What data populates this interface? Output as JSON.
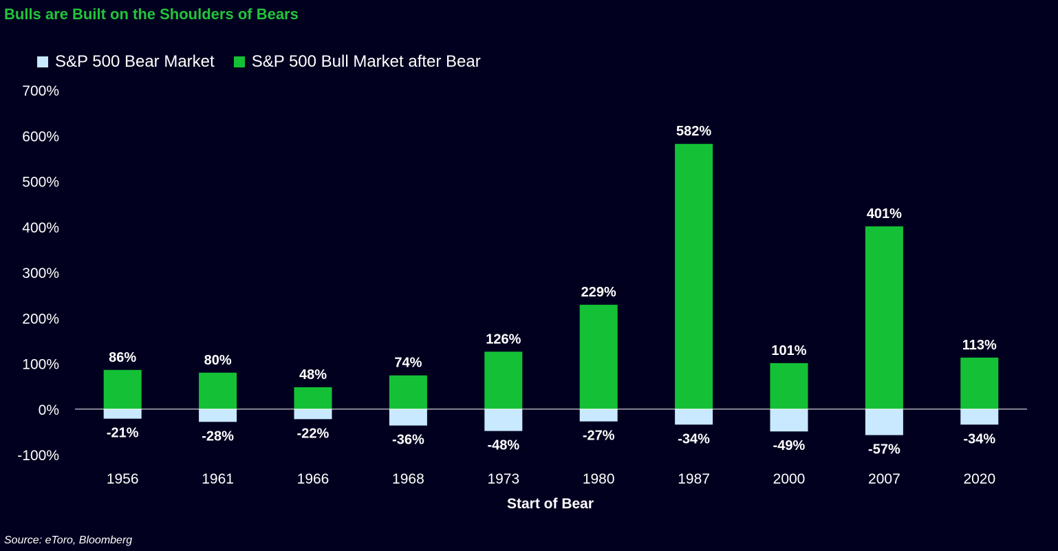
{
  "title": "Bulls are Built on the Shoulders of Bears",
  "source": "Source: eToro, Bloomberg",
  "colors": {
    "background": "#02001f",
    "bear": "#c8e9ff",
    "bull": "#14c136",
    "title": "#22c53a",
    "text": "#ffffff"
  },
  "legend": {
    "position": "top-left",
    "items": [
      {
        "label": "S&P 500 Bear Market",
        "color": "#c8e9ff"
      },
      {
        "label": "S&P 500 Bull Market after Bear",
        "color": "#14c136"
      }
    ]
  },
  "chart_data": {
    "type": "bar",
    "title": "Bulls are Built on the Shoulders of Bears",
    "xlabel": "Start of Bear",
    "ylabel": "",
    "ylim": [
      -100,
      700
    ],
    "yticks": [
      -100,
      0,
      100,
      200,
      300,
      400,
      500,
      600,
      700
    ],
    "ytick_labels": [
      "-100%",
      "0%",
      "100%",
      "200%",
      "300%",
      "400%",
      "500%",
      "600%",
      "700%"
    ],
    "grid": false,
    "categories": [
      "1956",
      "1961",
      "1966",
      "1968",
      "1973",
      "1980",
      "1987",
      "2000",
      "2007",
      "2020"
    ],
    "series": [
      {
        "name": "S&P 500 Bear Market",
        "values": [
          -21,
          -28,
          -22,
          -36,
          -48,
          -27,
          -34,
          -49,
          -57,
          -34
        ],
        "labels": [
          "-21%",
          "-28%",
          "-22%",
          "-36%",
          "-48%",
          "-27%",
          "-34%",
          "-49%",
          "-57%",
          "-34%"
        ]
      },
      {
        "name": "S&P 500 Bull Market after Bear",
        "values": [
          86,
          80,
          48,
          74,
          126,
          229,
          582,
          101,
          401,
          113
        ],
        "labels": [
          "86%",
          "80%",
          "48%",
          "74%",
          "126%",
          "229%",
          "582%",
          "101%",
          "401%",
          "113%"
        ]
      }
    ]
  }
}
